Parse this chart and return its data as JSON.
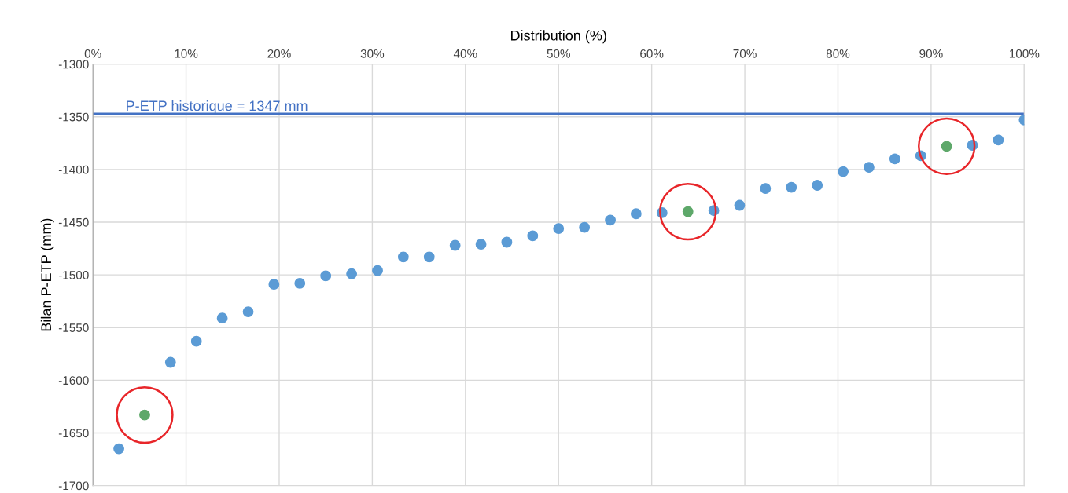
{
  "chart_data": {
    "type": "scatter",
    "xlabel": "Distribution (%)",
    "ylabel": "Bilan P-ETP (mm)",
    "x": [
      2.78,
      5.56,
      8.33,
      11.11,
      13.89,
      16.67,
      19.44,
      22.22,
      25,
      27.78,
      30.56,
      33.33,
      36.11,
      38.89,
      41.67,
      44.44,
      47.22,
      50,
      52.78,
      55.56,
      58.33,
      61.11,
      63.89,
      66.67,
      69.44,
      72.22,
      75,
      77.78,
      80.56,
      83.33,
      86.11,
      88.89,
      91.67,
      94.44,
      97.22,
      100
    ],
    "series": [
      {
        "marker": "circle",
        "color": "#5b9bd5",
        "colors": [
          "#5b9bd5",
          "#5ea86a",
          "#5b9bd5",
          "#5b9bd5",
          "#5b9bd5",
          "#5b9bd5",
          "#5b9bd5",
          "#5b9bd5",
          "#5b9bd5",
          "#5b9bd5",
          "#5b9bd5",
          "#5b9bd5",
          "#5b9bd5",
          "#5b9bd5",
          "#5b9bd5",
          "#5b9bd5",
          "#5b9bd5",
          "#5b9bd5",
          "#5b9bd5",
          "#5b9bd5",
          "#5b9bd5",
          "#5b9bd5",
          "#5ea86a",
          "#5b9bd5",
          "#5b9bd5",
          "#5b9bd5",
          "#5b9bd5",
          "#5b9bd5",
          "#5b9bd5",
          "#5b9bd5",
          "#5b9bd5",
          "#5b9bd5",
          "#5ea86a",
          "#5b9bd5",
          "#5b9bd5",
          "#5b9bd5"
        ],
        "values": [
          -1665,
          -1633,
          -1583,
          -1563,
          -1541,
          -1535,
          -1509,
          -1508,
          -1501,
          -1499,
          -1496,
          -1483,
          -1483,
          -1472,
          -1471,
          -1469,
          -1463,
          -1456,
          -1455,
          -1448,
          -1442,
          -1441,
          -1440,
          -1439,
          -1434,
          -1418,
          -1417,
          -1415,
          -1402,
          -1398,
          -1390,
          -1387,
          -1378,
          -1377,
          -1372,
          -1353
        ]
      },
      {
        "type": "bubble",
        "color": "#e8262a",
        "x": [
          5.56,
          63.89,
          91.67
        ],
        "values": [
          -1633,
          -1440,
          -1378
        ],
        "sizes": [
          1,
          1,
          1
        ]
      }
    ],
    "ref_lines": [
      {
        "axis": "y",
        "value": -1347,
        "color": "#4472c4"
      }
    ],
    "annotations": [
      "P-ETP historique = 1347 mm"
    ],
    "xlim": [
      0,
      100
    ],
    "ylim": [
      -1700,
      -1300
    ],
    "xticks": [
      {
        "value": 0,
        "label": "0%"
      },
      {
        "value": 10,
        "label": "10%"
      },
      {
        "value": 20,
        "label": "20%"
      },
      {
        "value": 30,
        "label": "30%"
      },
      {
        "value": 40,
        "label": "40%"
      },
      {
        "value": 50,
        "label": "50%"
      },
      {
        "value": 60,
        "label": "60%"
      },
      {
        "value": 70,
        "label": "70%"
      },
      {
        "value": 80,
        "label": "80%"
      },
      {
        "value": 90,
        "label": "90%"
      },
      {
        "value": 100,
        "label": "100%"
      }
    ],
    "yticks": [
      -1300,
      -1350,
      -1400,
      -1450,
      -1500,
      -1550,
      -1600,
      -1650,
      -1700
    ],
    "grid": true
  }
}
